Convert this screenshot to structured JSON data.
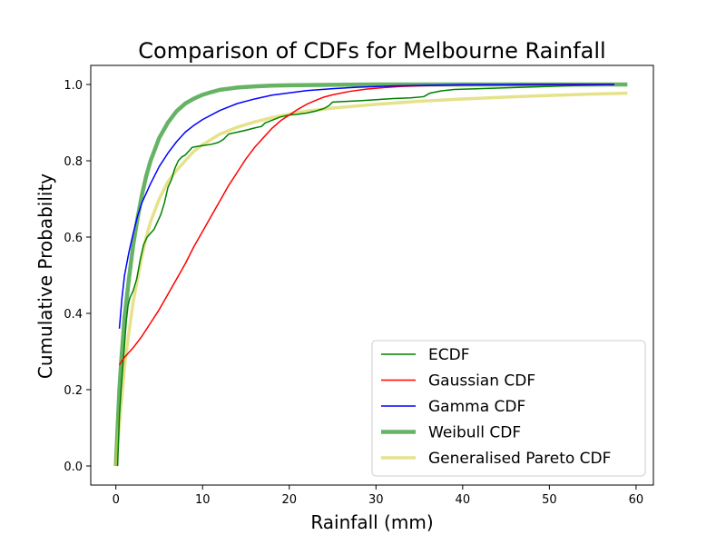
{
  "chart_data": {
    "type": "line",
    "title": "Comparison of CDFs for Melbourne Rainfall",
    "xlabel": "Rainfall (mm)",
    "ylabel": "Cumulative Probability",
    "xlim": [
      -2.9,
      62.0
    ],
    "ylim": [
      -0.05,
      1.05
    ],
    "x_ticks": [
      0,
      10,
      20,
      30,
      40,
      50,
      60
    ],
    "y_ticks": [
      0.0,
      0.2,
      0.4,
      0.6,
      0.8,
      1.0
    ],
    "x_tick_labels": [
      "0",
      "10",
      "20",
      "30",
      "40",
      "50",
      "60"
    ],
    "y_tick_labels": [
      "0.0",
      "0.2",
      "0.4",
      "0.6",
      "0.8",
      "1.0"
    ],
    "grid": false,
    "legend_position": "bottom-right",
    "series": [
      {
        "name": "ECDF",
        "color": "#008000",
        "line_width": 1.5,
        "opacity": 1.0,
        "x": [
          0.2,
          0.4,
          0.6,
          0.8,
          1.0,
          1.2,
          1.4,
          1.6,
          1.8,
          2.0,
          2.4,
          2.8,
          3.2,
          3.6,
          4.0,
          4.4,
          4.8,
          5.2,
          5.6,
          6.0,
          6.4,
          6.8,
          7.2,
          7.6,
          8.0,
          8.4,
          8.8,
          9.2,
          10.0,
          11.0,
          11.8,
          12.4,
          13.0,
          14.0,
          15.0,
          16.0,
          16.8,
          17.2,
          18.0,
          19.0,
          20.0,
          21.0,
          22.0,
          23.0,
          24.0,
          24.6,
          25.0,
          26.0,
          28.0,
          30.0,
          32.0,
          34.0,
          35.5,
          36.2,
          37.5,
          39.0,
          42.0,
          46.0,
          50.0,
          54.0,
          57.5
        ],
        "y": [
          0.0,
          0.13,
          0.2,
          0.26,
          0.32,
          0.38,
          0.42,
          0.44,
          0.45,
          0.46,
          0.49,
          0.54,
          0.58,
          0.6,
          0.61,
          0.62,
          0.64,
          0.66,
          0.69,
          0.73,
          0.75,
          0.78,
          0.8,
          0.81,
          0.815,
          0.825,
          0.835,
          0.837,
          0.84,
          0.843,
          0.848,
          0.856,
          0.87,
          0.875,
          0.88,
          0.886,
          0.89,
          0.899,
          0.906,
          0.915,
          0.92,
          0.922,
          0.925,
          0.93,
          0.937,
          0.945,
          0.954,
          0.955,
          0.957,
          0.96,
          0.963,
          0.965,
          0.968,
          0.977,
          0.983,
          0.987,
          0.989,
          0.992,
          0.995,
          0.998,
          1.0
        ]
      },
      {
        "name": "Gaussian CDF",
        "color": "#ff0000",
        "line_width": 1.5,
        "opacity": 1.0,
        "x": [
          0.4,
          1.0,
          2.0,
          3.0,
          4.0,
          5.0,
          6.0,
          7.0,
          8.0,
          9.0,
          10.0,
          11.0,
          12.0,
          13.0,
          14.0,
          15.0,
          16.0,
          17.0,
          18.0,
          19.0,
          20.0,
          21.0,
          22.0,
          23.0,
          24.0,
          25.0,
          27.0,
          29.0,
          31.0,
          33.0,
          36.0,
          40.0,
          45.0,
          50.0,
          57.5
        ],
        "y": [
          0.265,
          0.285,
          0.31,
          0.34,
          0.375,
          0.41,
          0.45,
          0.49,
          0.53,
          0.575,
          0.615,
          0.655,
          0.695,
          0.735,
          0.77,
          0.805,
          0.835,
          0.86,
          0.885,
          0.905,
          0.92,
          0.935,
          0.948,
          0.958,
          0.967,
          0.973,
          0.982,
          0.988,
          0.992,
          0.995,
          0.997,
          0.999,
          0.9995,
          1.0,
          1.0
        ]
      },
      {
        "name": "Gamma CDF",
        "color": "#0000ff",
        "line_width": 1.5,
        "opacity": 1.0,
        "x": [
          0.4,
          0.7,
          1.0,
          1.5,
          2.0,
          2.5,
          3.0,
          4.0,
          5.0,
          6.0,
          7.0,
          8.0,
          9.0,
          10.0,
          12.0,
          14.0,
          16.0,
          18.0,
          20.0,
          22.0,
          25.0,
          28.0,
          32.0,
          36.0,
          40.0,
          45.0,
          50.0,
          57.5
        ],
        "y": [
          0.36,
          0.44,
          0.5,
          0.56,
          0.61,
          0.655,
          0.69,
          0.74,
          0.785,
          0.82,
          0.85,
          0.875,
          0.893,
          0.908,
          0.932,
          0.95,
          0.962,
          0.972,
          0.978,
          0.984,
          0.989,
          0.993,
          0.996,
          0.998,
          0.999,
          0.9995,
          1.0,
          1.0
        ]
      },
      {
        "name": "Weibull CDF",
        "color": "#008000",
        "line_width": 4.5,
        "opacity": 0.6,
        "x": [
          0.0,
          0.2,
          0.4,
          0.6,
          0.8,
          1.0,
          1.5,
          2.0,
          2.5,
          3.0,
          3.5,
          4.0,
          5.0,
          6.0,
          7.0,
          8.0,
          9.0,
          10.0,
          11.0,
          12.0,
          14.0,
          16.0,
          18.0,
          20.0,
          25.0,
          30.0,
          40.0,
          50.0,
          59.0
        ],
        "y": [
          0.0,
          0.1,
          0.2,
          0.27,
          0.33,
          0.39,
          0.49,
          0.58,
          0.65,
          0.71,
          0.76,
          0.8,
          0.86,
          0.9,
          0.93,
          0.95,
          0.963,
          0.973,
          0.98,
          0.986,
          0.992,
          0.995,
          0.997,
          0.998,
          0.999,
          1.0,
          1.0,
          1.0,
          1.0
        ]
      },
      {
        "name": "Generalised Pareto CDF",
        "color": "#d4cf3e",
        "line_width": 3.5,
        "opacity": 0.6,
        "x": [
          0.0,
          0.2,
          0.4,
          0.6,
          0.8,
          1.0,
          1.5,
          2.0,
          2.5,
          3.0,
          3.5,
          4.0,
          5.0,
          6.0,
          7.0,
          8.0,
          9.0,
          10.0,
          12.0,
          14.0,
          16.0,
          18.0,
          20.0,
          22.0,
          25.0,
          30.0,
          35.0,
          40.0,
          45.0,
          50.0,
          55.0,
          59.0
        ],
        "y": [
          0.0,
          0.06,
          0.11,
          0.16,
          0.21,
          0.26,
          0.35,
          0.43,
          0.49,
          0.55,
          0.6,
          0.64,
          0.7,
          0.745,
          0.775,
          0.8,
          0.825,
          0.842,
          0.87,
          0.888,
          0.902,
          0.913,
          0.922,
          0.93,
          0.938,
          0.948,
          0.956,
          0.962,
          0.967,
          0.971,
          0.975,
          0.977
        ]
      }
    ]
  }
}
